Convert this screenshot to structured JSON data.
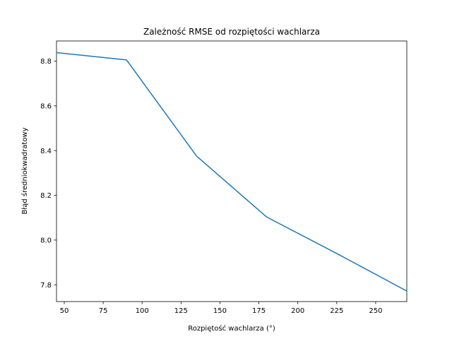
{
  "chart_data": {
    "type": "line",
    "title": "Zależność RMSE od rozpiętości wachlarza",
    "xlabel": "Rozpiętość wachlarza (°)",
    "ylabel": "Błąd średniokwadratowy",
    "xlim": [
      45,
      270
    ],
    "ylim": [
      7.725,
      8.89
    ],
    "x_ticks": [
      50,
      75,
      100,
      125,
      150,
      175,
      200,
      225,
      250
    ],
    "y_ticks": [
      7.8,
      8.0,
      8.2,
      8.4,
      8.6,
      8.8
    ],
    "x_tick_labels": [
      "50",
      "75",
      "100",
      "125",
      "150",
      "175",
      "200",
      "225",
      "250"
    ],
    "y_tick_labels": [
      "7.8",
      "8.0",
      "8.2",
      "8.4",
      "8.6",
      "8.8"
    ],
    "grid": false,
    "series": [
      {
        "x": [
          45,
          90,
          135,
          180,
          225,
          270
        ],
        "y": [
          8.838,
          8.805,
          8.375,
          8.103,
          7.94,
          7.772
        ],
        "color": "#1f77b4"
      }
    ]
  }
}
